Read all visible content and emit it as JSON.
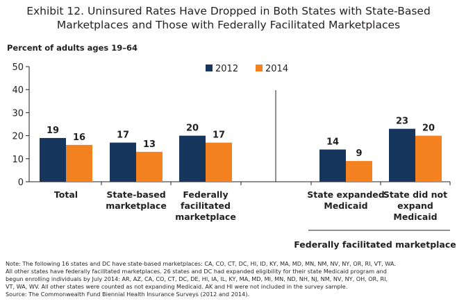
{
  "title_lines": [
    "Exhibit 12. Uninsured Rates Have Dropped in Both States with State-Based",
    "Marketplaces and Those with Federally Facilitated Marketplaces"
  ],
  "colors": {
    "series_2012": "#17365d",
    "series_2014": "#f58220",
    "text": "#231f20"
  },
  "chart_data": {
    "type": "bar",
    "title": "Exhibit 12. Uninsured Rates Have Dropped in Both States with State-Based Marketplaces and Those with Federally Facilitated Marketplaces",
    "ylabel": "Percent of adults ages 19–64",
    "xlabel": "",
    "ylim": [
      0,
      50
    ],
    "yticks": [
      0,
      10,
      20,
      30,
      40,
      50
    ],
    "legend_position": "top-center",
    "grid": false,
    "categories": [
      [
        "Total"
      ],
      [
        "State-based",
        "marketplace"
      ],
      [
        "Federally",
        "facilitated",
        "marketplace"
      ],
      [
        "State expanded",
        "Medicaid"
      ],
      [
        "State did not",
        "expand",
        "Medicaid"
      ]
    ],
    "series": [
      {
        "name": "2012",
        "values": [
          19,
          17,
          20,
          14,
          23
        ]
      },
      {
        "name": "2014",
        "values": [
          16,
          13,
          17,
          9,
          20
        ]
      }
    ],
    "group_label": "Federally facilitated marketplace"
  },
  "notes": [
    "Note: The following 16 states and DC have state-based marketplaces: CA, CO, CT, DC, HI, ID, KY, MA, MD, MN, NM, NV, NY, OR, RI, VT, WA.",
    "All other states have federally facilitated marketplaces. 26 states and DC had expanded eligibility for their state Medicaid program and",
    "begun enrolling individuals by July 2014: AR, AZ, CA, CO, CT, DC, DE, HI, IA, IL, KY, MA, MD, MI, MN, ND, NH, NJ, NM, NV, NY, OH, OR, RI,",
    "VT, WA, WV. All other states were counted as not expanding Medicaid. AK and HI were not included in the survey sample.",
    "Source: The Commonwealth Fund Biennial Health Insurance Surveys (2012 and 2014)."
  ]
}
